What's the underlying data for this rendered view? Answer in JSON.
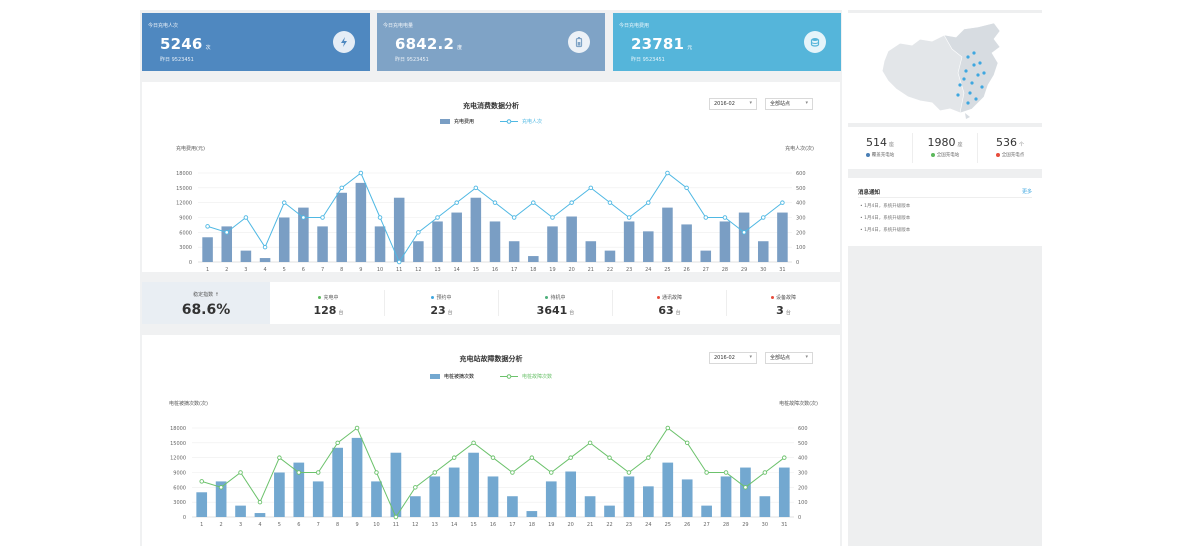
{
  "kpis": [
    {
      "label": "今日充电人次",
      "value": "5246",
      "unit": "次",
      "sub": "昨日 9523451",
      "color": "#4f88c0",
      "icon": "lightning-icon"
    },
    {
      "label": "今日充电电量",
      "value": "6842.2",
      "unit": "度",
      "sub": "昨日 9523451",
      "color": "#7fa3c6",
      "icon": "battery-icon"
    },
    {
      "label": "今日充电费用",
      "value": "23781",
      "unit": "元",
      "sub": "昨日 9523451",
      "color": "#55b5da",
      "icon": "coins-icon"
    }
  ],
  "chart1": {
    "title": "充电消费数据分析",
    "month_select": "2016-02",
    "station_select": "全部站点",
    "legend_bar": "充电费用",
    "legend_line": "充电人次",
    "left_axis_label": "充电费用(元)",
    "right_axis_label": "充电人次(次)"
  },
  "chart2": {
    "title": "充电站故障数据分析",
    "month_select": "2016-02",
    "station_select": "全部站点",
    "legend_bar": "电桩被摘次数",
    "legend_line": "电桩故障次数",
    "left_axis_label": "电桩被摘次数(次)",
    "right_axis_label": "电桩故障次数(次)"
  },
  "chart_data": [
    {
      "type": "bar",
      "title": "充电消费数据分析",
      "xlabel": "",
      "ylabel": "充电费用(元)",
      "y2label": "充电人次(次)",
      "categories": [
        "1",
        "2",
        "3",
        "4",
        "5",
        "6",
        "7",
        "8",
        "9",
        "10",
        "11",
        "12",
        "13",
        "14",
        "15",
        "16",
        "17",
        "18",
        "19",
        "20",
        "21",
        "22",
        "23",
        "24",
        "25",
        "26",
        "27",
        "28",
        "29",
        "30",
        "31"
      ],
      "series": [
        {
          "name": "充电费用",
          "type": "bar",
          "axis": "left",
          "color": "#7a9ec4",
          "values": [
            5000,
            7200,
            2300,
            800,
            9000,
            11000,
            7200,
            14000,
            16000,
            7200,
            13000,
            4200,
            8200,
            10000,
            13000,
            8200,
            4200,
            1200,
            7200,
            9200,
            4200,
            2300,
            8200,
            6200,
            11000,
            7600,
            2300,
            8200,
            10000,
            4200,
            10000
          ]
        },
        {
          "name": "充电人次",
          "type": "line",
          "axis": "right",
          "color": "#4fb8e3",
          "values": [
            240,
            200,
            300,
            100,
            400,
            300,
            300,
            500,
            600,
            300,
            0,
            200,
            300,
            400,
            500,
            400,
            300,
            400,
            300,
            400,
            500,
            400,
            300,
            400,
            600,
            500,
            300,
            300,
            200,
            300,
            400
          ]
        }
      ],
      "ylim": [
        0,
        18000
      ],
      "yticks": [
        0,
        3000,
        6000,
        9000,
        12000,
        15000,
        18000
      ],
      "y2lim": [
        0,
        600
      ],
      "y2ticks": [
        0,
        100,
        200,
        300,
        400,
        500,
        600
      ],
      "legend": "top-center",
      "grid": true
    },
    {
      "type": "bar",
      "title": "充电站故障数据分析",
      "xlabel": "",
      "ylabel": "电桩被摘次数(次)",
      "y2label": "电桩故障次数(次)",
      "categories": [
        "1",
        "2",
        "3",
        "4",
        "5",
        "6",
        "7",
        "8",
        "9",
        "10",
        "11",
        "12",
        "13",
        "14",
        "15",
        "16",
        "17",
        "18",
        "19",
        "20",
        "21",
        "22",
        "23",
        "24",
        "25",
        "26",
        "27",
        "28",
        "29",
        "30",
        "31"
      ],
      "series": [
        {
          "name": "电桩被摘次数",
          "type": "bar",
          "axis": "left",
          "color": "#73a8d0",
          "values": [
            5000,
            7200,
            2300,
            800,
            9000,
            11000,
            7200,
            14000,
            16000,
            7200,
            13000,
            4200,
            8200,
            10000,
            13000,
            8200,
            4200,
            1200,
            7200,
            9200,
            4200,
            2300,
            8200,
            6200,
            11000,
            7600,
            2300,
            8200,
            10000,
            4200,
            10000
          ]
        },
        {
          "name": "电桩故障次数",
          "type": "line",
          "axis": "right",
          "color": "#6cc26c",
          "values": [
            240,
            200,
            300,
            100,
            400,
            300,
            300,
            500,
            600,
            300,
            0,
            200,
            300,
            400,
            500,
            400,
            300,
            400,
            300,
            400,
            500,
            400,
            300,
            400,
            600,
            500,
            300,
            300,
            200,
            300,
            400
          ]
        }
      ],
      "ylim": [
        0,
        18000
      ],
      "yticks": [
        0,
        3000,
        6000,
        9000,
        12000,
        15000,
        18000
      ],
      "y2lim": [
        0,
        600
      ],
      "y2ticks": [
        0,
        100,
        200,
        300,
        400,
        500,
        600
      ],
      "legend": "top-center",
      "grid": true
    }
  ],
  "stats": {
    "headline": {
      "label": "稳定指数 ↑",
      "value": "68.6%"
    },
    "items": [
      {
        "label": "充电中",
        "value": "128",
        "unit": "台",
        "color": "#5cb85c"
      },
      {
        "label": "预约中",
        "value": "23",
        "unit": "台",
        "color": "#3ea7e0"
      },
      {
        "label": "待机中",
        "value": "3641",
        "unit": "台",
        "color": "#4caf7a"
      },
      {
        "label": "通讯故障",
        "value": "63",
        "unit": "台",
        "color": "#e74c3c"
      },
      {
        "label": "设备故障",
        "value": "3",
        "unit": "台",
        "color": "#e74c3c"
      }
    ]
  },
  "side_counts": [
    {
      "value": "514",
      "unit": "座",
      "label": "覆盖充电站",
      "color": "#4a7fb5"
    },
    {
      "value": "1980",
      "unit": "座",
      "label": "全国充电站",
      "color": "#5cb85c"
    },
    {
      "value": "536",
      "unit": "个",
      "label": "全国充电点",
      "color": "#e74c3c"
    }
  ],
  "messages": {
    "title": "消息通知",
    "more": "更多",
    "items": [
      "• 1月4日，系统升级版本",
      "• 1月4日，系统升级版本",
      "• 1月4日，系统升级版本"
    ]
  }
}
